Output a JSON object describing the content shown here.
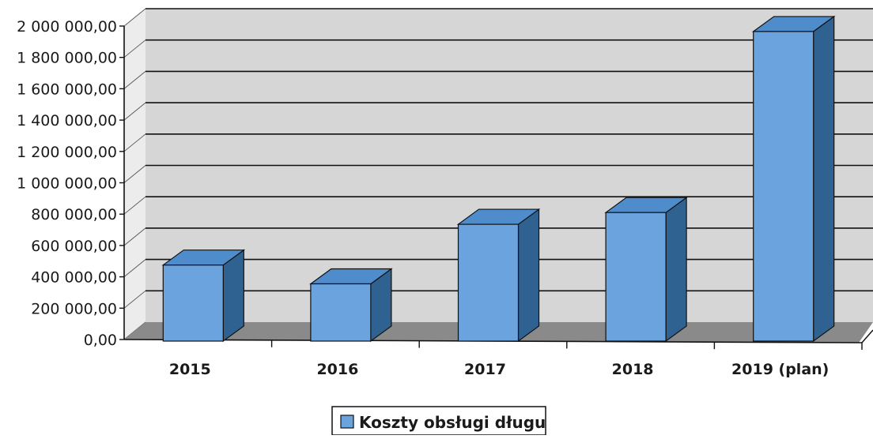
{
  "chart_data": {
    "type": "bar",
    "title": "",
    "xlabel": "",
    "ylabel": "",
    "categories": [
      "2015",
      "2016",
      "2017",
      "2018",
      "2019 (plan)"
    ],
    "series": [
      {
        "name": "Koszty obsługi długu",
        "values": [
          455000,
          335000,
          715000,
          790000,
          1945000
        ]
      }
    ],
    "ylim": [
      0,
      2000000
    ],
    "y_ticks": [
      0,
      200000,
      400000,
      600000,
      800000,
      1000000,
      1200000,
      1400000,
      1600000,
      1800000,
      2000000
    ],
    "y_tick_labels": [
      "0,00",
      "200 000,00",
      "400 000,00",
      "600 000,00",
      "800 000,00",
      "1 000 000,00",
      "1 200 000,00",
      "1 400 000,00",
      "1 600 000,00",
      "1 800 000,00",
      "2 000 000,00"
    ],
    "grid": true,
    "three_d": true,
    "legend_position": "bottom-center",
    "colors": {
      "bar_front": "#6aa3dd",
      "bar_top": "#4f8ccc",
      "bar_side": "#2f6291",
      "bar_edge": "#111111",
      "wall": "#d6d6d6",
      "floor": "#8a8a8a",
      "grid": "#111111"
    }
  }
}
